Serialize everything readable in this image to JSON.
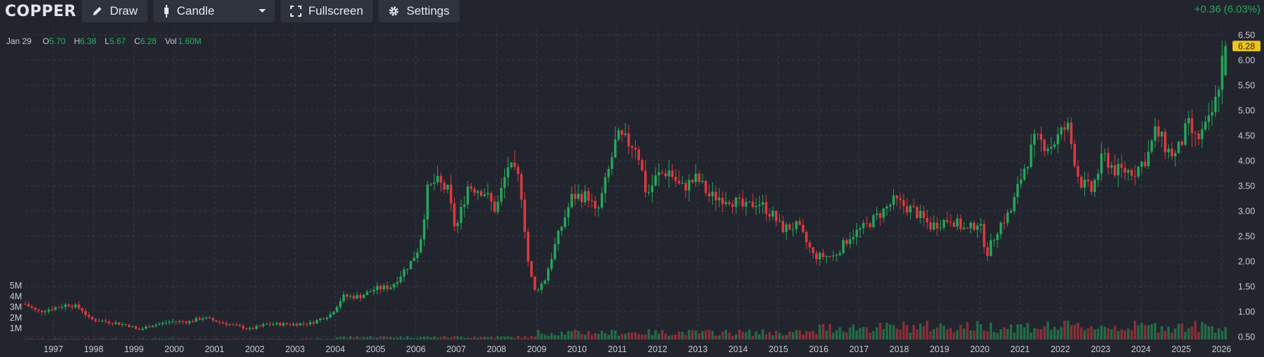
{
  "header": {
    "symbol": "COPPER",
    "draw_label": "Draw",
    "chart_type_label": "Candle",
    "fullscreen_label": "Fullscreen",
    "settings_label": "Settings",
    "change_text": "+0.36 (6.03%)"
  },
  "legend": {
    "date": "Jan 29",
    "open_key": "O",
    "open": "5.70",
    "high_key": "H",
    "high": "6.38",
    "low_key": "L",
    "low": "5.67",
    "close_key": "C",
    "close": "6.28",
    "vol_key": "Vol",
    "vol": "1.60M"
  },
  "colors": {
    "up": "#26a65b",
    "down": "#e0393e",
    "background": "#22252e",
    "last_price_label": "#f0c419"
  },
  "chart_data": {
    "type": "candlestick",
    "interval": "monthly",
    "x_tick_labels": [
      "1997",
      "1998",
      "1999",
      "2000",
      "2001",
      "2002",
      "2003",
      "2004",
      "2005",
      "2006",
      "2007",
      "2008",
      "2009",
      "2010",
      "2011",
      "2012",
      "2013",
      "2014",
      "2015",
      "2016",
      "2017",
      "2018",
      "2019",
      "2020",
      "2021",
      "2022",
      "2023",
      "2024",
      "2025",
      "2026"
    ],
    "y_tick_labels": [
      "0.50",
      "1.00",
      "1.50",
      "2.00",
      "2.50",
      "3.00",
      "3.50",
      "4.00",
      "4.50",
      "5.00",
      "5.50",
      "6.00",
      "6.50"
    ],
    "ylim": [
      0.5,
      6.5
    ],
    "volume_tick_labels": [
      "1M",
      "2M",
      "3M",
      "4M",
      "5M"
    ],
    "volume_ylim_millions": [
      0,
      5
    ],
    "last_price": "6.28",
    "x_start_year": 1996.3,
    "x_end_year": 2026.1,
    "close_anchors": [
      [
        1996.3,
        1.15
      ],
      [
        1996.6,
        1.0
      ],
      [
        1996.9,
        1.05
      ],
      [
        1997.4,
        1.15
      ],
      [
        1997.7,
        1.05
      ],
      [
        1997.9,
        0.85
      ],
      [
        1998.5,
        0.78
      ],
      [
        1998.9,
        0.72
      ],
      [
        1999.1,
        0.63
      ],
      [
        1999.4,
        0.72
      ],
      [
        1999.9,
        0.8
      ],
      [
        2000.4,
        0.8
      ],
      [
        2000.7,
        0.88
      ],
      [
        2001.0,
        0.82
      ],
      [
        2001.5,
        0.72
      ],
      [
        2001.9,
        0.65
      ],
      [
        2002.3,
        0.75
      ],
      [
        2002.9,
        0.75
      ],
      [
        2003.4,
        0.77
      ],
      [
        2003.9,
        0.95
      ],
      [
        2004.2,
        1.3
      ],
      [
        2004.6,
        1.3
      ],
      [
        2005.0,
        1.45
      ],
      [
        2005.4,
        1.5
      ],
      [
        2005.9,
        2.0
      ],
      [
        2006.1,
        2.3
      ],
      [
        2006.3,
        3.4
      ],
      [
        2006.5,
        3.6
      ],
      [
        2006.8,
        3.4
      ],
      [
        2007.0,
        2.6
      ],
      [
        2007.3,
        3.5
      ],
      [
        2007.7,
        3.4
      ],
      [
        2008.0,
        3.0
      ],
      [
        2008.3,
        3.9
      ],
      [
        2008.6,
        3.6
      ],
      [
        2008.8,
        2.0
      ],
      [
        2008.95,
        1.4
      ],
      [
        2009.2,
        1.6
      ],
      [
        2009.5,
        2.4
      ],
      [
        2009.9,
        3.3
      ],
      [
        2010.3,
        3.3
      ],
      [
        2010.5,
        2.9
      ],
      [
        2010.8,
        3.8
      ],
      [
        2011.0,
        4.45
      ],
      [
        2011.5,
        4.3
      ],
      [
        2011.75,
        3.3
      ],
      [
        2012.0,
        3.7
      ],
      [
        2012.3,
        3.8
      ],
      [
        2012.6,
        3.45
      ],
      [
        2013.0,
        3.65
      ],
      [
        2013.3,
        3.3
      ],
      [
        2013.8,
        3.25
      ],
      [
        2014.2,
        3.05
      ],
      [
        2014.5,
        3.2
      ],
      [
        2014.9,
        2.9
      ],
      [
        2015.1,
        2.65
      ],
      [
        2015.5,
        2.7
      ],
      [
        2015.9,
        2.1
      ],
      [
        2016.4,
        2.1
      ],
      [
        2016.8,
        2.5
      ],
      [
        2017.2,
        2.7
      ],
      [
        2017.9,
        3.2
      ],
      [
        2018.4,
        3.0
      ],
      [
        2018.8,
        2.7
      ],
      [
        2019.3,
        2.85
      ],
      [
        2019.7,
        2.6
      ],
      [
        2020.0,
        2.8
      ],
      [
        2020.2,
        2.15
      ],
      [
        2020.5,
        2.7
      ],
      [
        2020.8,
        3.0
      ],
      [
        2021.1,
        3.8
      ],
      [
        2021.4,
        4.4
      ],
      [
        2021.8,
        4.3
      ],
      [
        2022.2,
        4.7
      ],
      [
        2022.5,
        3.6
      ],
      [
        2022.8,
        3.4
      ],
      [
        2023.1,
        4.1
      ],
      [
        2023.4,
        3.8
      ],
      [
        2023.9,
        3.8
      ],
      [
        2024.2,
        4.1
      ],
      [
        2024.4,
        4.6
      ],
      [
        2024.7,
        4.2
      ],
      [
        2024.9,
        4.1
      ],
      [
        2025.2,
        4.7
      ],
      [
        2025.4,
        4.4
      ],
      [
        2025.7,
        4.7
      ],
      [
        2025.9,
        5.2
      ],
      [
        2026.1,
        6.28
      ]
    ]
  }
}
